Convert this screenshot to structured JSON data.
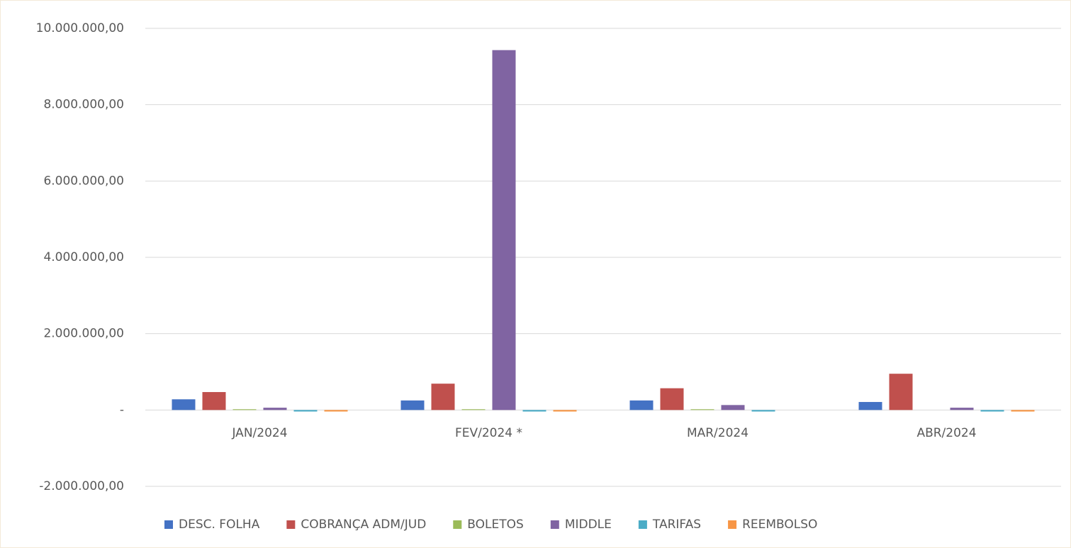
{
  "chart_data": {
    "type": "bar",
    "categories": [
      "JAN/2024",
      "FEV/2024 *",
      "MAR/2024",
      "ABR/2024"
    ],
    "series": [
      {
        "name": "DESC. FOLHA",
        "color": "#4472c4",
        "values": [
          280000,
          250000,
          250000,
          210000
        ]
      },
      {
        "name": "COBRANÇA ADM/JUD",
        "color": "#c0504d",
        "values": [
          470000,
          690000,
          570000,
          950000
        ]
      },
      {
        "name": "BOLETOS",
        "color": "#9bbb59",
        "values": [
          20000,
          20000,
          20000,
          0
        ]
      },
      {
        "name": "MIDDLE",
        "color": "#8064a2",
        "values": [
          60000,
          9430000,
          130000,
          60000
        ]
      },
      {
        "name": "TARIFAS",
        "color": "#4bacc6",
        "values": [
          -40000,
          -40000,
          -40000,
          -40000
        ]
      },
      {
        "name": "REEMBOLSO",
        "color": "#f79646",
        "values": [
          -40000,
          -40000,
          0,
          -40000
        ]
      }
    ],
    "ylim": [
      -2000000,
      10000000
    ],
    "yticks": [
      {
        "value": -2000000,
        "label": "-2.000.000,00"
      },
      {
        "value": 0,
        "label": "-"
      },
      {
        "value": 2000000,
        "label": "2.000.000,00"
      },
      {
        "value": 4000000,
        "label": "4.000.000,00"
      },
      {
        "value": 6000000,
        "label": "6.000.000,00"
      },
      {
        "value": 8000000,
        "label": "8.000.000,00"
      },
      {
        "value": 10000000,
        "label": "10.000.000,00"
      }
    ],
    "grid": true,
    "legend": "bottom"
  }
}
